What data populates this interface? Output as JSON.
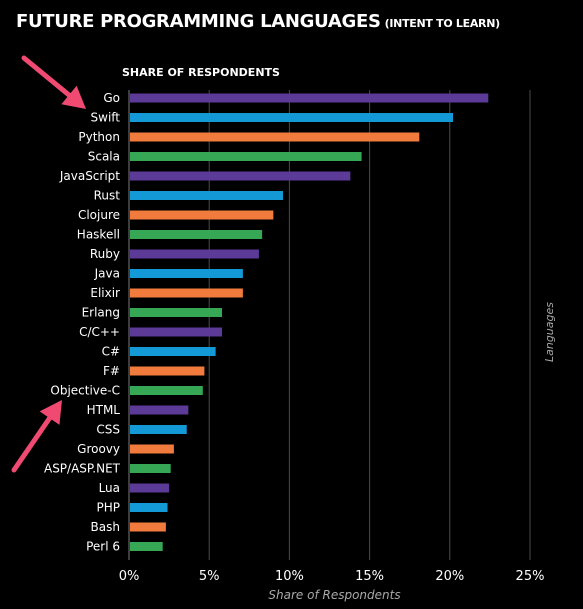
{
  "title": {
    "main": "FUTURE PROGRAMMING LANGUAGES",
    "sub": "(INTENT TO LEARN)"
  },
  "chart_header": "SHARE OF RESPONDENTS",
  "colors": {
    "purple": "#5b3a98",
    "blue": "#139ad6",
    "orange": "#f07b3c",
    "green": "#36a855",
    "arrow": "#f04a73",
    "grid": "#4a4a4a"
  },
  "chart_data": {
    "type": "bar",
    "orientation": "horizontal",
    "categories": [
      "Go",
      "Swift",
      "Python",
      "Scala",
      "JavaScript",
      "Rust",
      "Clojure",
      "Haskell",
      "Ruby",
      "Java",
      "Elixir",
      "Erlang",
      "C/C++",
      "C#",
      "F#",
      "Objective-C",
      "HTML",
      "CSS",
      "Groovy",
      "ASP/ASP.NET",
      "Lua",
      "PHP",
      "Bash",
      "Perl 6"
    ],
    "values": [
      22.4,
      20.2,
      18.1,
      14.5,
      13.8,
      9.6,
      9.0,
      8.3,
      8.1,
      7.1,
      7.1,
      5.8,
      5.8,
      5.4,
      4.7,
      4.6,
      3.7,
      3.6,
      2.8,
      2.6,
      2.5,
      2.4,
      2.3,
      2.1
    ],
    "bar_colors": [
      "purple",
      "blue",
      "orange",
      "green",
      "purple",
      "blue",
      "orange",
      "green",
      "purple",
      "blue",
      "orange",
      "green",
      "purple",
      "blue",
      "orange",
      "green",
      "purple",
      "blue",
      "orange",
      "green",
      "purple",
      "blue",
      "orange",
      "green"
    ],
    "xlim": [
      0,
      25
    ],
    "xticks": [
      0,
      5,
      10,
      15,
      20,
      25
    ],
    "xtick_labels": [
      "0%",
      "5%",
      "10%",
      "15%",
      "20%",
      "25%"
    ],
    "xlabel": "Share of Respondents",
    "ylabel": "Languages",
    "grid": true
  },
  "annotations": [
    {
      "type": "arrow",
      "points_to": "Go",
      "color": "arrow"
    },
    {
      "type": "arrow",
      "points_to": "Objective-C",
      "color": "arrow"
    }
  ]
}
